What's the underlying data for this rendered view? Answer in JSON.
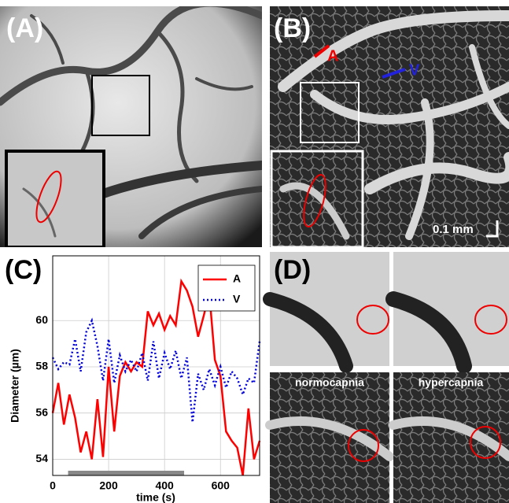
{
  "panels": {
    "a": {
      "label": "(A)"
    },
    "b": {
      "label": "(B)",
      "artery": "A",
      "vein": "V",
      "scale": "0.1 mm"
    },
    "d": {
      "label": "(D)",
      "left": "normocapnia",
      "right": "hypercapnia"
    }
  },
  "chart_data": {
    "type": "line",
    "label": "(C)",
    "xlabel": "time (s)",
    "ylabel": "Diameter (µm)",
    "x": [
      0,
      20,
      40,
      60,
      80,
      100,
      120,
      140,
      160,
      180,
      200,
      220,
      240,
      260,
      280,
      300,
      320,
      340,
      360,
      380,
      400,
      420,
      440,
      460,
      480,
      500,
      520,
      540,
      560,
      580,
      600,
      620,
      640,
      660,
      680,
      700,
      720,
      740
    ],
    "series": [
      {
        "name": "A",
        "color": "#ff0000",
        "dash": "solid",
        "values": [
          56.0,
          57.3,
          55.5,
          56.8,
          55.8,
          54.3,
          55.2,
          54.0,
          56.6,
          54.1,
          58.0,
          55.2,
          57.6,
          58.2,
          57.8,
          58.2,
          58.0,
          60.4,
          59.8,
          60.3,
          59.6,
          60.2,
          59.8,
          61.7,
          61.3,
          60.6,
          59.3,
          60.2,
          61.2,
          58.3,
          57.6,
          55.2,
          54.8,
          54.5,
          53.3,
          56.2,
          54.0,
          54.8
        ]
      },
      {
        "name": "V",
        "color": "#0000dd",
        "dash": "dotted",
        "values": [
          58.4,
          57.9,
          58.2,
          58.1,
          59.2,
          57.8,
          59.5,
          60.0,
          58.9,
          57.4,
          59.2,
          57.3,
          58.5,
          57.8,
          58.3,
          57.8,
          58.6,
          57.4,
          59.1,
          57.5,
          58.6,
          57.9,
          58.7,
          57.5,
          58.4,
          55.6,
          57.7,
          57.0,
          57.9,
          57.2,
          58.0,
          57.1,
          57.8,
          57.5,
          56.8,
          57.5,
          57.3,
          59.1
        ]
      }
    ],
    "shaded_span": [
      55,
      470
    ],
    "xlim": [
      0,
      740
    ],
    "ylim": [
      53.3,
      62.8
    ],
    "xticks": [
      0,
      200,
      400,
      600
    ],
    "yticks": [
      54,
      56,
      58,
      60
    ],
    "grid": true,
    "legend": "upper right"
  }
}
